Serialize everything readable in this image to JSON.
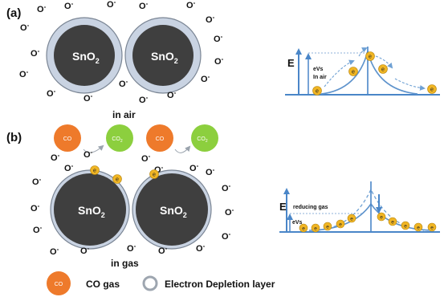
{
  "panel_a": {
    "label": "(a)",
    "grain_text": "SnO",
    "grain_sub": "2",
    "ion_text": "O",
    "ion_sup": "-",
    "caption": "in air",
    "band": {
      "e_axis": "E",
      "barrier_label_1": "eVs",
      "barrier_label_2": "In air",
      "electron": "e"
    }
  },
  "panel_b": {
    "label": "(b)",
    "grain_text": "SnO",
    "grain_sub": "2",
    "ion_text": "O",
    "ion_sup": "-",
    "co_label": "CO",
    "co2_text": "CO",
    "co2_sub": "2",
    "electron": "e",
    "caption": "in gas",
    "band": {
      "e_axis": "E",
      "reducing_label": "reducing gas",
      "barrier_label": "eVs",
      "electron": "e"
    }
  },
  "legend": {
    "co_circle_label": "CO",
    "co_text": "CO gas",
    "depletion_text": "Electron Depletion layer"
  },
  "colors": {
    "core": "#3f3f3f",
    "shell": "#c9d3e2",
    "shell_stroke": "#7a8594",
    "co": "#ee7a2b",
    "co2": "#8ccf3e",
    "electron": "#f0b524",
    "axis": "#4a86c8",
    "curve": "#5e93cc"
  }
}
